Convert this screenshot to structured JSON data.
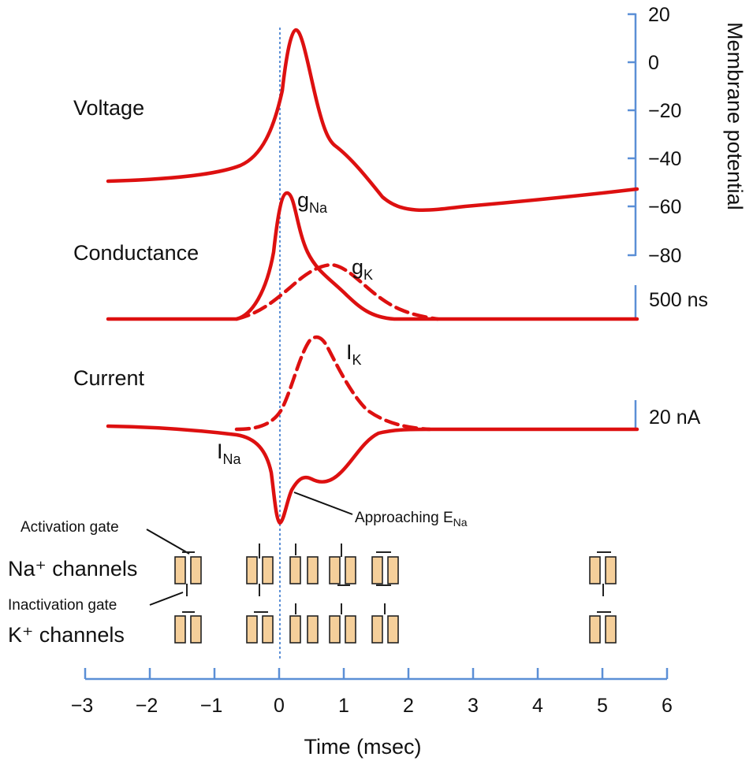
{
  "colors": {
    "trace": "#dd1010",
    "axis": "#5b8fd6",
    "gate_fill": "#f5cf9a",
    "gate_stroke": "#222222"
  },
  "rows": {
    "voltage": "Voltage",
    "conductance": "Conductance",
    "current": "Current"
  },
  "trace_labels": {
    "g_na": {
      "main": "g",
      "sub": "Na"
    },
    "g_k": {
      "main": "g",
      "sub": "K"
    },
    "i_k": {
      "main": "I",
      "sub": "K"
    },
    "i_na": {
      "main": "I",
      "sub": "Na"
    },
    "approaching": {
      "main": "Approaching E",
      "sub": "Na"
    }
  },
  "membrane_axis": {
    "title": "Membrane potential",
    "ticks": [
      "20",
      "0",
      "−20",
      "−40",
      "−60",
      "−80"
    ]
  },
  "scale_bars": {
    "conductance": "500 ns",
    "current": "20 nA"
  },
  "channels": {
    "activation_gate": "Activation gate",
    "inactivation_gate": "Inactivation gate",
    "na_label": "Na⁺ channels",
    "k_label": "K⁺ channels"
  },
  "time_axis": {
    "title": "Time (msec)",
    "ticks": [
      "−3",
      "−2",
      "−1",
      "0",
      "1",
      "2",
      "3",
      "4",
      "5",
      "6"
    ]
  },
  "icons": {
    "channel": "ion-channel-icon"
  }
}
